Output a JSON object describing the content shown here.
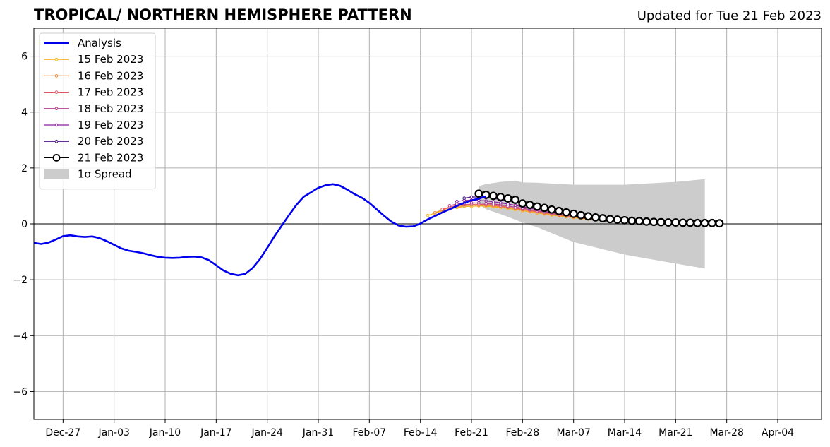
{
  "header": {
    "title": "TROPICAL/ NORTHERN HEMISPHERE PATTERN",
    "updated": "Updated for Tue 21 Feb 2023"
  },
  "chart_data": {
    "type": "line",
    "title": "TROPICAL/ NORTHERN HEMISPHERE PATTERN",
    "xlabel": "",
    "ylabel": "",
    "x_range": [
      "2022-12-23",
      "2023-04-10"
    ],
    "ylim": [
      -7,
      7
    ],
    "yticks": [
      -6,
      -4,
      -2,
      0,
      2,
      4,
      6
    ],
    "ytick_labels": [
      "−6",
      "−4",
      "−2",
      "0",
      "2",
      "4",
      "6"
    ],
    "xticks": [
      "2022-12-27",
      "2023-01-03",
      "2023-01-10",
      "2023-01-17",
      "2023-01-24",
      "2023-01-31",
      "2023-02-07",
      "2023-02-14",
      "2023-02-21",
      "2023-02-28",
      "2023-03-07",
      "2023-03-14",
      "2023-03-21",
      "2023-03-28",
      "2023-04-04"
    ],
    "xtick_labels": [
      "Dec-27",
      "Jan-03",
      "Jan-10",
      "Jan-17",
      "Jan-24",
      "Jan-31",
      "Feb-07",
      "Feb-14",
      "Feb-21",
      "Feb-28",
      "Mar-07",
      "Mar-14",
      "Mar-21",
      "Mar-28",
      "Apr-04"
    ],
    "grid": true,
    "legend_position": "top-left",
    "analysis": {
      "name": "Analysis",
      "color": "#0000ee",
      "start": "2022-12-23",
      "values": [
        -0.68,
        -0.72,
        -0.67,
        -0.56,
        -0.44,
        -0.41,
        -0.45,
        -0.47,
        -0.45,
        -0.51,
        -0.62,
        -0.75,
        -0.88,
        -0.96,
        -1.0,
        -1.05,
        -1.12,
        -1.18,
        -1.21,
        -1.22,
        -1.21,
        -1.18,
        -1.17,
        -1.2,
        -1.3,
        -1.48,
        -1.67,
        -1.79,
        -1.84,
        -1.79,
        -1.58,
        -1.26,
        -0.86,
        -0.44,
        -0.06,
        0.32,
        0.68,
        0.97,
        1.13,
        1.29,
        1.38,
        1.42,
        1.36,
        1.22,
        1.06,
        0.93,
        0.75,
        0.52,
        0.29,
        0.08,
        -0.06,
        -0.1,
        -0.09,
        0.01,
        0.16,
        0.28,
        0.41,
        0.52,
        0.64,
        0.75,
        0.84,
        0.9,
        0.99
      ]
    },
    "forecasts": [
      {
        "name": "15 Feb 2023",
        "color": "#f5b51c",
        "start": "2023-02-15",
        "values": [
          0.3,
          0.38,
          0.46,
          0.53,
          0.58,
          0.62,
          0.63,
          0.64,
          0.63,
          0.61,
          0.58,
          0.55,
          0.51,
          0.47,
          0.43,
          0.39,
          0.35,
          0.31,
          0.28,
          0.25,
          0.22,
          0.19,
          0.17,
          0.15,
          0.13,
          0.11,
          0.09,
          0.08,
          0.07,
          0.06,
          0.05,
          0.04,
          0.04,
          0.03,
          0.03,
          0.02,
          0.02,
          0.02,
          0.02
        ]
      },
      {
        "name": "16 Feb 2023",
        "color": "#f08a3a",
        "start": "2023-02-16",
        "values": [
          0.4,
          0.5,
          0.57,
          0.62,
          0.65,
          0.67,
          0.67,
          0.66,
          0.64,
          0.61,
          0.58,
          0.54,
          0.5,
          0.46,
          0.42,
          0.38,
          0.34,
          0.3,
          0.27,
          0.24,
          0.21,
          0.18,
          0.16,
          0.14,
          0.12,
          0.1,
          0.09,
          0.08,
          0.07,
          0.06,
          0.05,
          0.04,
          0.04,
          0.03,
          0.03,
          0.03,
          0.02,
          0.02
        ]
      },
      {
        "name": "17 Feb 2023",
        "color": "#e05a66",
        "start": "2023-02-17",
        "values": [
          0.52,
          0.6,
          0.66,
          0.69,
          0.7,
          0.7,
          0.69,
          0.67,
          0.64,
          0.6,
          0.56,
          0.52,
          0.48,
          0.44,
          0.4,
          0.36,
          0.32,
          0.29,
          0.26,
          0.23,
          0.2,
          0.18,
          0.16,
          0.14,
          0.12,
          0.1,
          0.09,
          0.08,
          0.07,
          0.06,
          0.05,
          0.04,
          0.04,
          0.03,
          0.03,
          0.03,
          0.02
        ]
      },
      {
        "name": "18 Feb 2023",
        "color": "#b53d8c",
        "start": "2023-02-18",
        "values": [
          0.65,
          0.71,
          0.74,
          0.75,
          0.75,
          0.73,
          0.71,
          0.68,
          0.64,
          0.6,
          0.56,
          0.51,
          0.47,
          0.43,
          0.39,
          0.35,
          0.32,
          0.29,
          0.26,
          0.23,
          0.2,
          0.18,
          0.16,
          0.14,
          0.12,
          0.11,
          0.09,
          0.08,
          0.07,
          0.06,
          0.05,
          0.05,
          0.04,
          0.04,
          0.03,
          0.03
        ]
      },
      {
        "name": "19 Feb 2023",
        "color": "#8b1fa0",
        "start": "2023-02-19",
        "values": [
          0.8,
          0.84,
          0.85,
          0.84,
          0.82,
          0.79,
          0.75,
          0.71,
          0.66,
          0.61,
          0.56,
          0.51,
          0.47,
          0.43,
          0.39,
          0.35,
          0.31,
          0.28,
          0.25,
          0.22,
          0.2,
          0.18,
          0.16,
          0.14,
          0.12,
          0.11,
          0.1,
          0.09,
          0.08,
          0.07,
          0.06,
          0.05,
          0.05,
          0.04,
          0.04
        ]
      },
      {
        "name": "20 Feb 2023",
        "color": "#4b128c",
        "start": "2023-02-20",
        "values": [
          0.92,
          0.96,
          0.96,
          0.94,
          0.91,
          0.87,
          0.82,
          0.77,
          0.72,
          0.66,
          0.61,
          0.56,
          0.51,
          0.46,
          0.42,
          0.38,
          0.34,
          0.3,
          0.27,
          0.24,
          0.21,
          0.19,
          0.17,
          0.15,
          0.13,
          0.12,
          0.1,
          0.09,
          0.08,
          0.07,
          0.06,
          0.06,
          0.05,
          0.05
        ]
      },
      {
        "name": "21 Feb 2023",
        "color": "#000000",
        "start": "2023-02-22",
        "values": [
          1.08,
          1.04,
          1.0,
          0.96,
          0.91,
          0.86,
          0.73,
          0.68,
          0.62,
          0.57,
          0.51,
          0.46,
          0.41,
          0.36,
          0.31,
          0.27,
          0.23,
          0.2,
          0.17,
          0.15,
          0.13,
          0.11,
          0.1,
          0.08,
          0.07,
          0.06,
          0.05,
          0.05,
          0.04,
          0.04,
          0.03,
          0.03,
          0.03,
          0.02
        ]
      }
    ],
    "spread": {
      "name": "1σ Spread",
      "color": "#cccccc",
      "dates": [
        "2023-02-22",
        "2023-02-23",
        "2023-02-25",
        "2023-02-27",
        "2023-02-28",
        "2023-03-02",
        "2023-03-07",
        "2023-03-14",
        "2023-03-21",
        "2023-03-25"
      ],
      "upper": [
        1.35,
        1.42,
        1.5,
        1.55,
        1.48,
        1.47,
        1.4,
        1.4,
        1.5,
        1.6
      ],
      "lower": [
        0.7,
        0.52,
        0.35,
        0.15,
        0.05,
        -0.12,
        -0.65,
        -1.1,
        -1.42,
        -1.6
      ]
    }
  }
}
